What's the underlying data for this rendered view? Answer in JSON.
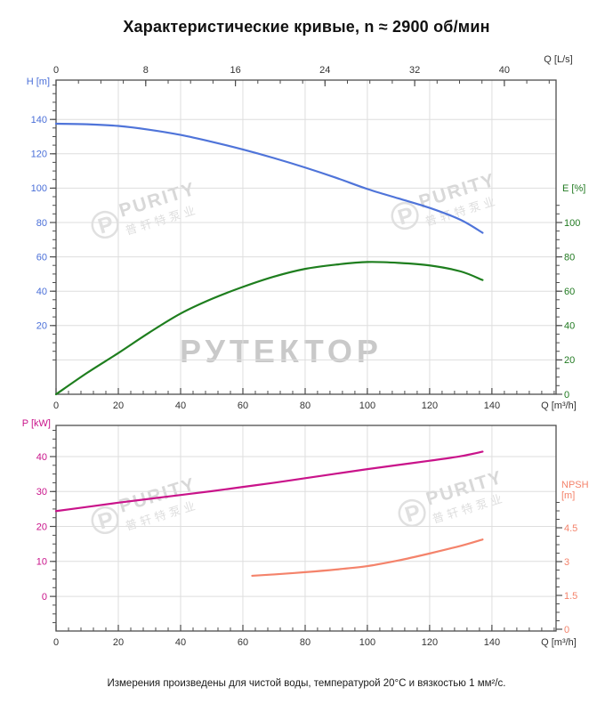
{
  "title": "Характеристические кривые, n ≈ 2900 об/мин",
  "footer": "Измерения произведены для чистой воды, температурой 20°C и вязкостью 1 мм²/с.",
  "watermarks": {
    "brand_large": "РУТЕКТОР",
    "purity_text": "PURITY",
    "purity_subtext": "普轩特泵业",
    "purity_logo": "℗"
  },
  "colors": {
    "axis": "#4d4d4d",
    "grid": "#dedede",
    "tick_text": "#333333"
  },
  "chart_data": [
    {
      "type": "line",
      "name": "head-and-efficiency",
      "x_bottom": {
        "label": "Q [m³/h]",
        "min": 0,
        "max": 160.6,
        "major_ticks": [
          0,
          20,
          40,
          60,
          80,
          100,
          120,
          140
        ],
        "minor_step": 4,
        "minor_range": [
          0,
          160
        ],
        "color": "#333333"
      },
      "x_top": {
        "label": "Q [L/s]",
        "min": 0,
        "max": 44.6,
        "unit_to_bottom": 3.6,
        "major_ticks": [
          0,
          8,
          16,
          24,
          32,
          40
        ],
        "minor_step": 2,
        "minor_range": [
          0,
          44
        ],
        "color": "#333333"
      },
      "y_left": {
        "label": "H [m]",
        "min": -20,
        "max": 162.9,
        "major_ticks": [
          20,
          40,
          60,
          80,
          100,
          120,
          140
        ],
        "minor_step": 5,
        "minor_range": [
          0,
          160
        ],
        "color": "#4a6fd8"
      },
      "y_right": {
        "label": "E [%]",
        "min": 0,
        "max": 182.9,
        "major_ticks": [
          0,
          20,
          40,
          60,
          80,
          100
        ],
        "minor_step": 5,
        "minor_range": [
          0,
          110
        ],
        "color": "#217a21"
      },
      "grid": {
        "h_axis": "y_right",
        "h_values": [
          20,
          40,
          60,
          80,
          100,
          120,
          140,
          160
        ],
        "v_values": [
          20,
          40,
          60,
          80,
          100,
          120,
          140
        ]
      },
      "series": [
        {
          "name": "H",
          "axis": "y_left",
          "color": "#4f74d9",
          "points": [
            [
              0,
              137.5
            ],
            [
              10,
              137.2
            ],
            [
              20,
              136.2
            ],
            [
              30,
              134
            ],
            [
              40,
              131
            ],
            [
              50,
              127
            ],
            [
              60,
              122.5
            ],
            [
              70,
              117.5
            ],
            [
              80,
              112
            ],
            [
              90,
              106
            ],
            [
              100,
              99.5
            ],
            [
              110,
              94
            ],
            [
              120,
              88.5
            ],
            [
              130,
              81.5
            ],
            [
              137,
              74
            ]
          ]
        },
        {
          "name": "E",
          "axis": "y_right",
          "color": "#1e7e1e",
          "points": [
            [
              0,
              0
            ],
            [
              10,
              12.5
            ],
            [
              20,
              24
            ],
            [
              30,
              36
            ],
            [
              40,
              47
            ],
            [
              50,
              55.5
            ],
            [
              60,
              62.5
            ],
            [
              70,
              68.5
            ],
            [
              80,
              73
            ],
            [
              90,
              75.5
            ],
            [
              100,
              77
            ],
            [
              110,
              76.5
            ],
            [
              120,
              75
            ],
            [
              130,
              71.5
            ],
            [
              137,
              66.5
            ]
          ]
        }
      ]
    },
    {
      "type": "line",
      "name": "power-and-npsh",
      "x_bottom": {
        "label": "Q [m³/h]",
        "min": 0,
        "max": 160.6,
        "major_ticks": [
          0,
          20,
          40,
          60,
          80,
          100,
          120,
          140
        ],
        "minor_step": 4,
        "minor_range": [
          0,
          160
        ],
        "color": "#333333"
      },
      "y_left": {
        "label": "P [kW]",
        "min": -9.9,
        "max": 48.9,
        "major_ticks": [
          0,
          10,
          20,
          30,
          40
        ],
        "minor_step": 2.5,
        "minor_range": [
          -7.5,
          47.5
        ],
        "color": "#c9138a"
      },
      "y_right": {
        "label": "NPSH [m]",
        "min": -0.08,
        "max": 9.04,
        "major_ticks": [
          0,
          1.5,
          3,
          4.5
        ],
        "minor_step": 0.375,
        "minor_range": [
          0,
          5.625
        ],
        "color": "#f4836b"
      },
      "grid": {
        "h_axis": "y_left",
        "h_values": [
          0,
          10,
          20,
          30,
          40
        ],
        "v_values": [
          20,
          40,
          60,
          80,
          100,
          120,
          140
        ]
      },
      "series": [
        {
          "name": "P",
          "axis": "y_left",
          "color": "#c9138a",
          "points": [
            [
              0,
              24.4
            ],
            [
              10,
              25.6
            ],
            [
              20,
              26.8
            ],
            [
              30,
              27.9
            ],
            [
              40,
              29
            ],
            [
              50,
              30.1
            ],
            [
              60,
              31.3
            ],
            [
              70,
              32.5
            ],
            [
              80,
              33.8
            ],
            [
              90,
              35.1
            ],
            [
              100,
              36.4
            ],
            [
              110,
              37.6
            ],
            [
              120,
              38.8
            ],
            [
              130,
              40.1
            ],
            [
              137,
              41.4
            ]
          ]
        },
        {
          "name": "NPSH",
          "axis": "y_right",
          "color": "#f4836b",
          "points": [
            [
              63,
              2.37
            ],
            [
              70,
              2.43
            ],
            [
              80,
              2.53
            ],
            [
              90,
              2.65
            ],
            [
              100,
              2.8
            ],
            [
              110,
              3.05
            ],
            [
              120,
              3.36
            ],
            [
              130,
              3.7
            ],
            [
              137,
              3.98
            ]
          ]
        }
      ]
    }
  ],
  "npsh_title_line1": "NPSH",
  "npsh_title_line2": "[m]"
}
